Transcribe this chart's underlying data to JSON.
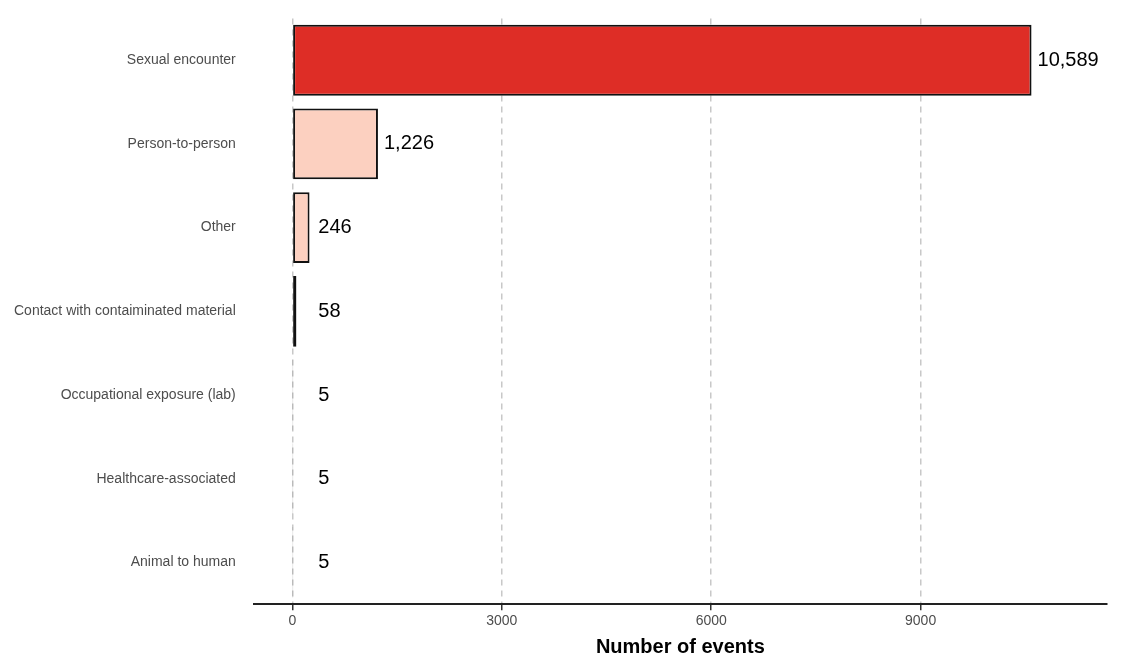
{
  "chart_data": {
    "type": "bar",
    "orientation": "horizontal",
    "xlabel": "Number of events",
    "categories": [
      "Sexual encounter",
      "Person-to-person",
      "Other",
      "Contact with contaiminated material",
      "Occupational exposure (lab)",
      "Healthcare-associated",
      "Animal to human"
    ],
    "values": [
      10589,
      1226,
      246,
      58,
      5,
      5,
      5
    ],
    "value_labels": [
      "10,589",
      "1,226",
      "246",
      "58",
      "5",
      "5",
      "5"
    ],
    "colors": [
      "#de2d26",
      "#fcd0c0",
      "#fcd0c0",
      "#111111",
      "#111111",
      "#111111",
      "#111111"
    ],
    "xlim": [
      -553,
      11670
    ],
    "xticks": [
      0,
      3000,
      6000,
      9000
    ],
    "grid": "x",
    "legend": false
  }
}
